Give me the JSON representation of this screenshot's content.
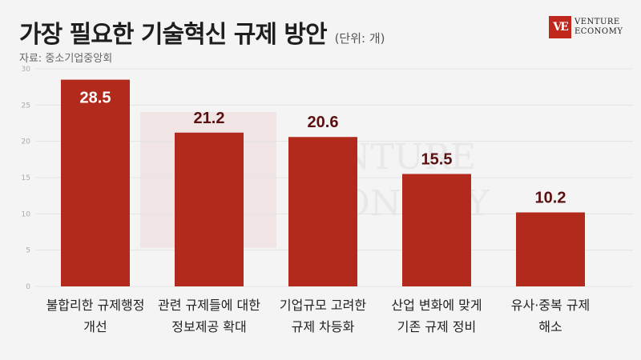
{
  "header": {
    "title": "가장 필요한 기술혁신 규제 방안",
    "unit": "(단위: 개)",
    "source": "자료: 중소기업중앙회"
  },
  "logo": {
    "mark": "VE",
    "line1": "VENTURE",
    "line2": "ECONOMY"
  },
  "watermark": {
    "line1": "VENTURE",
    "line2": "ECONOMY"
  },
  "colors": {
    "bar": "#b22a1b",
    "value_label_inside": "#ffffff",
    "value_label_outside": "#5a1010",
    "tick": "#aaaaaa",
    "grid": "#e4e4e4"
  },
  "chart_data": {
    "type": "bar",
    "categories": [
      [
        "불합리한 규제행정",
        "개선"
      ],
      [
        "관련 규제들에 대한",
        "정보제공 확대"
      ],
      [
        "기업규모 고려한",
        "규제 차등화"
      ],
      [
        "산업 변화에 맞게",
        "기존 규제 정비"
      ],
      [
        "유사·중복 규제",
        "해소"
      ]
    ],
    "values": [
      28.5,
      21.2,
      20.6,
      15.5,
      10.2
    ],
    "value_labels": [
      "28.5",
      "21.2",
      "20.6",
      "15.5",
      "10.2"
    ],
    "ylim": [
      0,
      30
    ],
    "yticks": [
      "0",
      "5",
      "10",
      "15",
      "20",
      "25",
      "30"
    ],
    "grid": true,
    "legend": "none"
  }
}
